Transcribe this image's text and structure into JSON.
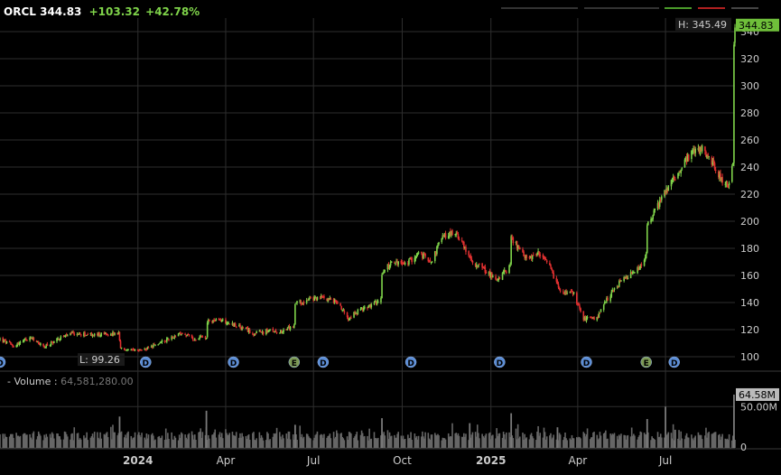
{
  "header": {
    "symbol": "ORCL",
    "last": "344.83",
    "change": "+103.32",
    "change_pct": "+42.78%"
  },
  "volume_header": {
    "dash": "-",
    "label": "Volume",
    "sep": ":",
    "value": "64,581,280.00"
  },
  "colors": {
    "up": "#7fd34a",
    "down": "#e03030",
    "grid": "#2e2e2e",
    "volume": "#666666",
    "dividend_marker": "#5b8dd6",
    "earnings_marker": "#7d9a55"
  },
  "chart_data": {
    "type": "candlestick",
    "title": "ORCL",
    "price_axis": {
      "ticks": [
        100,
        120,
        140,
        160,
        180,
        200,
        220,
        240,
        260,
        280,
        300,
        320,
        340
      ],
      "range": [
        90,
        350
      ]
    },
    "volume_axis": {
      "ticks": [
        "0",
        "50.00M"
      ],
      "range": [
        0,
        70000000
      ]
    },
    "x_labels": [
      {
        "label": "2024",
        "date": "2024-01-01",
        "bold": true
      },
      {
        "label": "Apr",
        "date": "2024-04-01"
      },
      {
        "label": "Jul",
        "date": "2024-07-01"
      },
      {
        "label": "Oct",
        "date": "2024-10-01"
      },
      {
        "label": "2025",
        "date": "2025-01-01",
        "bold": true
      },
      {
        "label": "Apr",
        "date": "2025-04-01"
      },
      {
        "label": "Jul",
        "date": "2025-07-01"
      }
    ],
    "x_range": [
      "2023-08-11",
      "2025-09-11"
    ],
    "high_label": "H: 345.49",
    "low_label": "L: 99.26",
    "last_price_label": "344.83",
    "last_volume_label": "64.58M",
    "price_path": [
      [
        "2023-08-11",
        113
      ],
      [
        "2023-08-25",
        108
      ],
      [
        "2023-09-12",
        114
      ],
      [
        "2023-09-26",
        107
      ],
      [
        "2023-10-12",
        114
      ],
      [
        "2023-10-26",
        117
      ],
      [
        "2023-11-16",
        116
      ],
      [
        "2023-12-12",
        117
      ],
      [
        "2023-12-14",
        106
      ],
      [
        "2023-12-28",
        104
      ],
      [
        "2024-01-12",
        106
      ],
      [
        "2024-01-31",
        113
      ],
      [
        "2024-02-15",
        117
      ],
      [
        "2024-03-01",
        113
      ],
      [
        "2024-03-08",
        116
      ],
      [
        "2024-03-12",
        113
      ],
      [
        "2024-03-13",
        126
      ],
      [
        "2024-03-28",
        127
      ],
      [
        "2024-04-15",
        122
      ],
      [
        "2024-05-01",
        117
      ],
      [
        "2024-05-15",
        119
      ],
      [
        "2024-05-31",
        119
      ],
      [
        "2024-06-11",
        123
      ],
      [
        "2024-06-12",
        139
      ],
      [
        "2024-06-26",
        142
      ],
      [
        "2024-07-12",
        144
      ],
      [
        "2024-07-26",
        140
      ],
      [
        "2024-08-06",
        129
      ],
      [
        "2024-08-20",
        135
      ],
      [
        "2024-09-06",
        140
      ],
      [
        "2024-09-09",
        144
      ],
      [
        "2024-09-10",
        162
      ],
      [
        "2024-09-20",
        170
      ],
      [
        "2024-10-04",
        168
      ],
      [
        "2024-10-18",
        176
      ],
      [
        "2024-11-01",
        171
      ],
      [
        "2024-11-11",
        188
      ],
      [
        "2024-11-22",
        192
      ],
      [
        "2024-12-02",
        186
      ],
      [
        "2024-12-10",
        172
      ],
      [
        "2024-12-20",
        167
      ],
      [
        "2025-01-07",
        157
      ],
      [
        "2025-01-21",
        167
      ],
      [
        "2025-01-22",
        188
      ],
      [
        "2025-02-05",
        173
      ],
      [
        "2025-02-20",
        176
      ],
      [
        "2025-03-03",
        166
      ],
      [
        "2025-03-14",
        148
      ],
      [
        "2025-03-28",
        146
      ],
      [
        "2025-04-07",
        128
      ],
      [
        "2025-04-21",
        128
      ],
      [
        "2025-05-01",
        142
      ],
      [
        "2025-05-15",
        155
      ],
      [
        "2025-06-05",
        166
      ],
      [
        "2025-06-11",
        175
      ],
      [
        "2025-06-12",
        197
      ],
      [
        "2025-06-20",
        208
      ],
      [
        "2025-07-01",
        222
      ],
      [
        "2025-07-15",
        238
      ],
      [
        "2025-07-28",
        250
      ],
      [
        "2025-08-08",
        253
      ],
      [
        "2025-08-21",
        240
      ],
      [
        "2025-08-29",
        230
      ],
      [
        "2025-09-05",
        226
      ],
      [
        "2025-09-09",
        242
      ],
      [
        "2025-09-10",
        328
      ],
      [
        "2025-09-11",
        344.83
      ]
    ],
    "volume_spikes": [
      [
        "2023-12-13",
        38000000
      ],
      [
        "2024-03-12",
        45000000
      ],
      [
        "2024-06-12",
        28000000
      ],
      [
        "2024-09-10",
        36000000
      ],
      [
        "2024-12-10",
        30000000
      ],
      [
        "2025-01-22",
        42000000
      ],
      [
        "2025-03-11",
        25000000
      ],
      [
        "2025-06-12",
        35000000
      ],
      [
        "2025-07-01",
        50000000
      ],
      [
        "2025-07-11",
        22000000
      ],
      [
        "2025-09-10",
        64580000
      ]
    ],
    "markers": [
      {
        "type": "D",
        "date": "2023-08-11"
      },
      {
        "type": "D",
        "date": "2024-01-09"
      },
      {
        "type": "D",
        "date": "2024-04-09"
      },
      {
        "type": "E",
        "date": "2024-06-11"
      },
      {
        "type": "D",
        "date": "2024-07-11"
      },
      {
        "type": "D",
        "date": "2024-10-10"
      },
      {
        "type": "D",
        "date": "2025-01-10"
      },
      {
        "type": "D",
        "date": "2025-04-10"
      },
      {
        "type": "E",
        "date": "2025-06-11"
      },
      {
        "type": "D",
        "date": "2025-07-10"
      }
    ]
  }
}
